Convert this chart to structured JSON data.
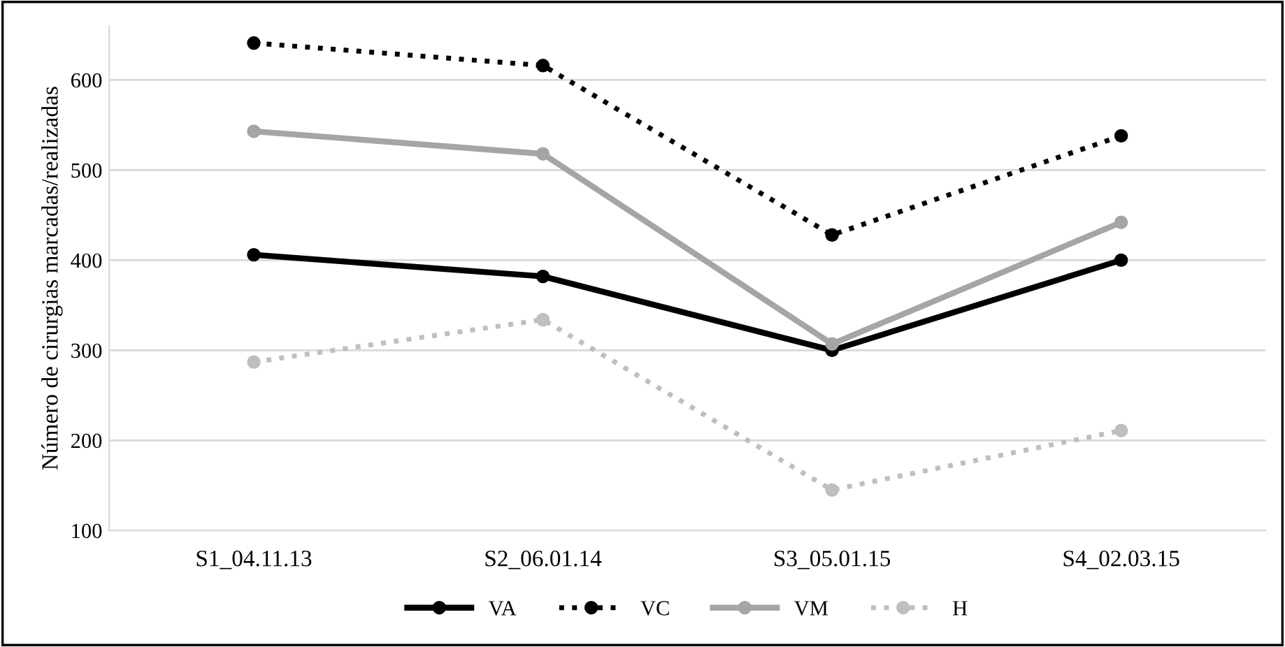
{
  "chart_data": {
    "type": "line",
    "ylabel": "Número de cirurgias marcadas/realizadas",
    "categories": [
      "S1_04.11.13",
      "S2_06.01.14",
      "S3_05.01.15",
      "S4_02.03.15"
    ],
    "series": [
      {
        "name": "VA",
        "color": "#000000",
        "line_style": "solid",
        "values": [
          406,
          382,
          300,
          400
        ]
      },
      {
        "name": "VC",
        "color": "#000000",
        "line_style": "dotted",
        "values": [
          641,
          616,
          428,
          538
        ]
      },
      {
        "name": "VM",
        "color": "#a5a5a5",
        "line_style": "solid",
        "values": [
          543,
          518,
          307,
          442
        ]
      },
      {
        "name": "H",
        "color": "#bfbfbf",
        "line_style": "dotted",
        "values": [
          287,
          334,
          145,
          211
        ]
      }
    ],
    "ylim": [
      100,
      660
    ],
    "yticks": [
      100,
      200,
      300,
      400,
      500,
      600
    ],
    "grid": "y",
    "legend": "bottom",
    "marker": "circle"
  }
}
